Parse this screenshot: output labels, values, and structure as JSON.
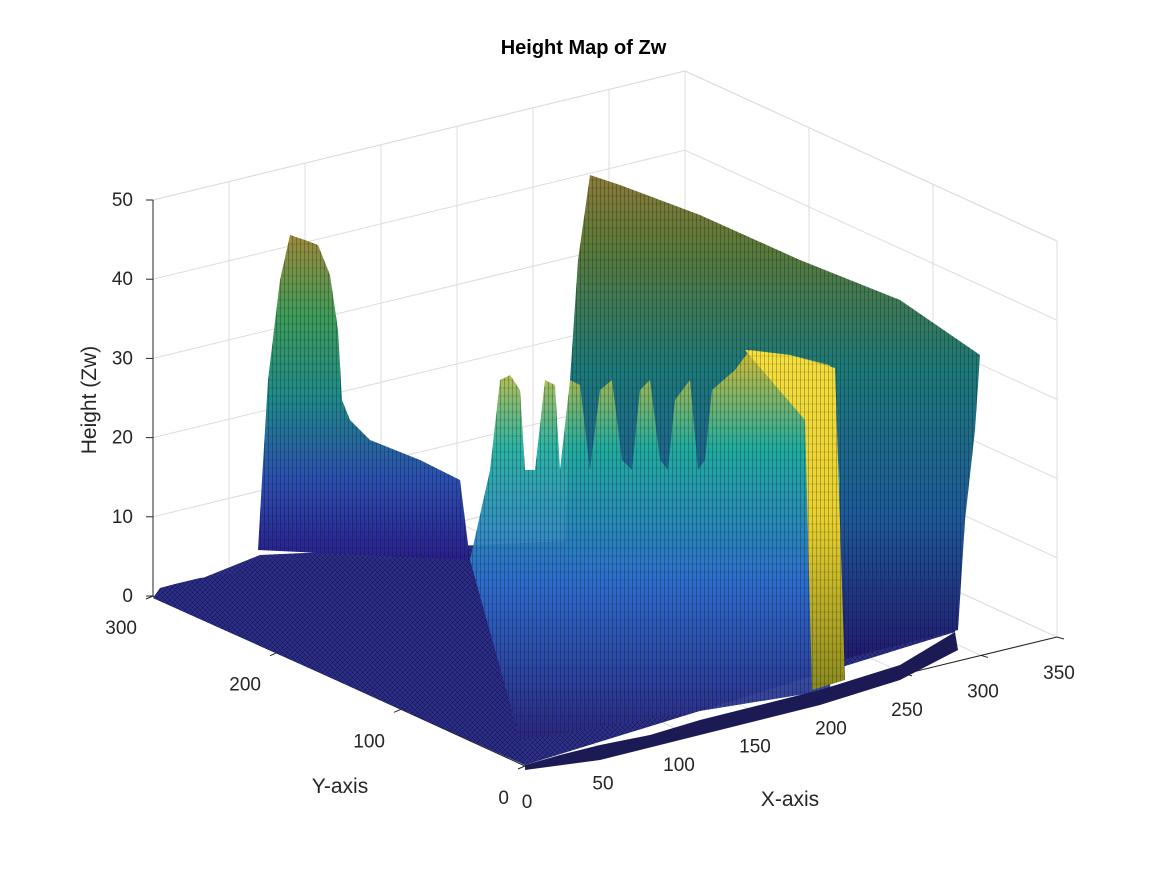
{
  "chart_data": {
    "type": "surface",
    "title": "Height Map of Zw",
    "xlabel": "X-axis",
    "ylabel": "Y-axis",
    "zlabel": "Height (Zw)",
    "xlim": [
      0,
      350
    ],
    "ylim": [
      0,
      300
    ],
    "zlim": [
      0,
      50
    ],
    "x_ticks": [
      "0",
      "50",
      "100",
      "150",
      "200",
      "250",
      "300",
      "350"
    ],
    "x_tick_values": [
      0,
      50,
      100,
      150,
      200,
      250,
      300,
      350
    ],
    "y_ticks": [
      "0",
      "100",
      "200",
      "300"
    ],
    "y_tick_values": [
      0,
      100,
      200,
      300
    ],
    "z_ticks": [
      "0",
      "10",
      "20",
      "30",
      "40",
      "50"
    ],
    "z_tick_values": [
      0,
      10,
      20,
      30,
      40,
      50
    ],
    "grid": true,
    "colormap": "parula",
    "edge_color": "#000000",
    "surface_profile": {
      "description_free": true,
      "ridges": [
        {
          "x_range": [
            0,
            330
          ],
          "y_range": [
            280,
            300
          ],
          "height": 0
        },
        {
          "x_range": [
            0,
            20
          ],
          "y_range": [
            230,
            300
          ],
          "height": 44
        },
        {
          "x_range": [
            0,
            330
          ],
          "y_range": [
            0,
            20
          ],
          "height": 44
        },
        {
          "x_range": [
            230,
            260
          ],
          "y_range": [
            20,
            60
          ],
          "height": 30
        }
      ]
    }
  }
}
